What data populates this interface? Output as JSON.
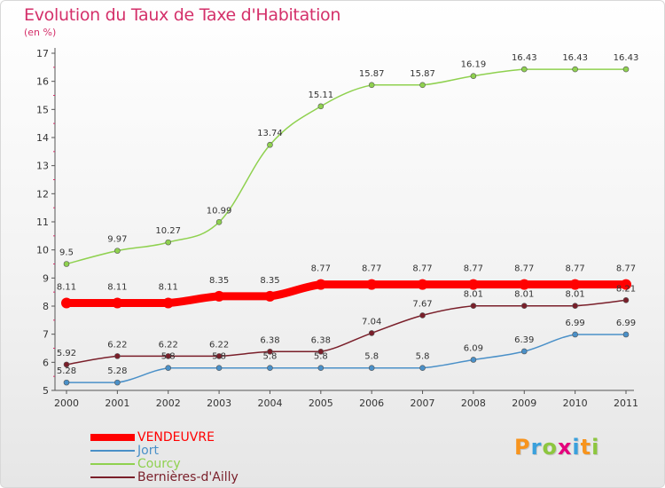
{
  "title": "Evolution du Taux de Taxe d'Habitation",
  "subtitle": "(en %)",
  "logo": {
    "text": "Proxiti",
    "letters": [
      {
        "ch": "P",
        "color": "#f7941d"
      },
      {
        "ch": "r",
        "color": "#3aa0dc"
      },
      {
        "ch": "o",
        "color": "#8dc63f"
      },
      {
        "ch": "x",
        "color": "#e4007c"
      },
      {
        "ch": "i",
        "color": "#3aa0dc"
      },
      {
        "ch": "t",
        "color": "#f7941d"
      },
      {
        "ch": "i",
        "color": "#8dc63f"
      }
    ]
  },
  "chart_data": {
    "type": "line",
    "x": [
      "2000",
      "2001",
      "2002",
      "2003",
      "2004",
      "2005",
      "2006",
      "2007",
      "2008",
      "2009",
      "2010",
      "2011"
    ],
    "ylim": [
      5,
      17
    ],
    "yticks": [
      "5",
      "6",
      "7",
      "8",
      "9",
      "10",
      "11",
      "12",
      "13",
      "14",
      "15",
      "16",
      "17"
    ],
    "grid": false,
    "legend_position": "bottom-left",
    "series": [
      {
        "name": "VENDEUVRE",
        "color": "#ff0000",
        "values": [
          8.11,
          8.11,
          8.11,
          8.35,
          8.35,
          8.77,
          8.77,
          8.77,
          8.77,
          8.77,
          8.77,
          8.77
        ],
        "labels": [
          "8.11",
          "8.11",
          "8.11",
          "8.35",
          "8.35",
          "8.77",
          "8.77",
          "8.77",
          "8.77",
          "8.77",
          "8.77",
          "8.77"
        ]
      },
      {
        "name": "Jort",
        "color": "#4a90c8",
        "values": [
          5.28,
          5.28,
          5.8,
          5.8,
          5.8,
          5.8,
          5.8,
          5.8,
          6.09,
          6.39,
          6.99,
          6.99
        ],
        "labels": [
          "5.28",
          "5.28",
          "5.8",
          "5.8",
          "5.8",
          "5.8",
          "5.8",
          "5.8",
          "6.09",
          "6.39",
          "6.99",
          "6.99"
        ]
      },
      {
        "name": "Courcy",
        "color": "#8fd14f",
        "values": [
          9.5,
          9.97,
          10.27,
          10.99,
          13.74,
          15.11,
          15.87,
          15.87,
          16.19,
          16.43,
          16.43,
          16.43
        ],
        "labels": [
          "9.5",
          "9.97",
          "10.27",
          "10.99",
          "13.74",
          "15.11",
          "15.87",
          "15.87",
          "16.19",
          "16.43",
          "16.43",
          "16.43"
        ]
      },
      {
        "name": "Bernières-d'Ailly",
        "color": "#7a1f2a",
        "values": [
          5.92,
          6.22,
          6.22,
          6.22,
          6.38,
          6.38,
          7.04,
          7.67,
          8.01,
          8.01,
          8.01,
          8.21
        ],
        "labels": [
          "5.92",
          "6.22",
          "6.22",
          "6.22",
          "6.38",
          "6.38",
          "7.04",
          "7.67",
          "8.01",
          "8.01",
          "8.01",
          "8.21"
        ]
      }
    ]
  }
}
